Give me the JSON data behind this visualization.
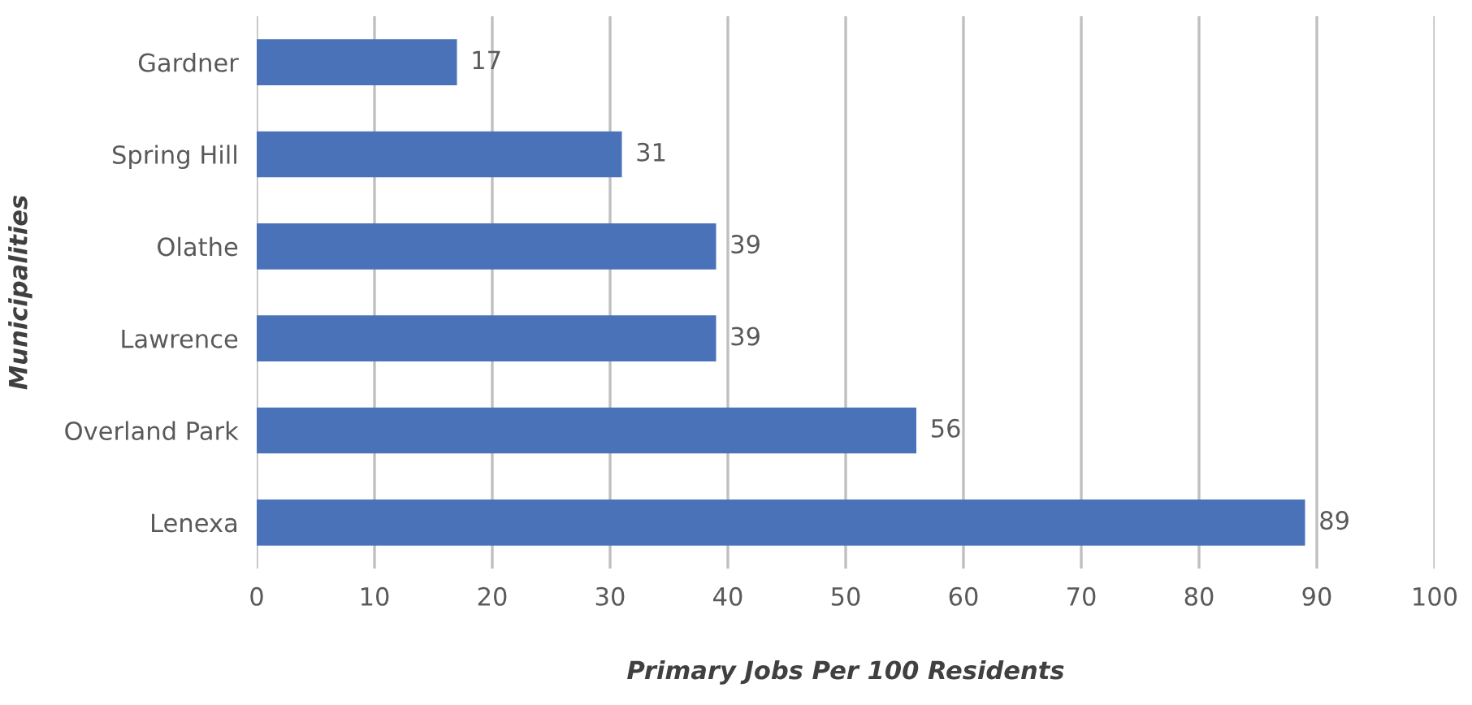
{
  "chart_data": {
    "type": "bar",
    "orientation": "horizontal",
    "xlabel": "Primary Jobs Per 100 Residents",
    "ylabel": "Municipalities",
    "categories": [
      "Gardner",
      "Spring Hill",
      "Olathe",
      "Lawrence",
      "Overland Park",
      "Lenexa"
    ],
    "values": [
      17,
      31,
      39,
      39,
      56,
      89
    ],
    "color": "#4a72b8",
    "xlim": [
      0,
      100
    ],
    "xticks": [
      0,
      10,
      20,
      30,
      40,
      50,
      60,
      70,
      80,
      90,
      100
    ],
    "grid": "x",
    "data_labels": true
  }
}
